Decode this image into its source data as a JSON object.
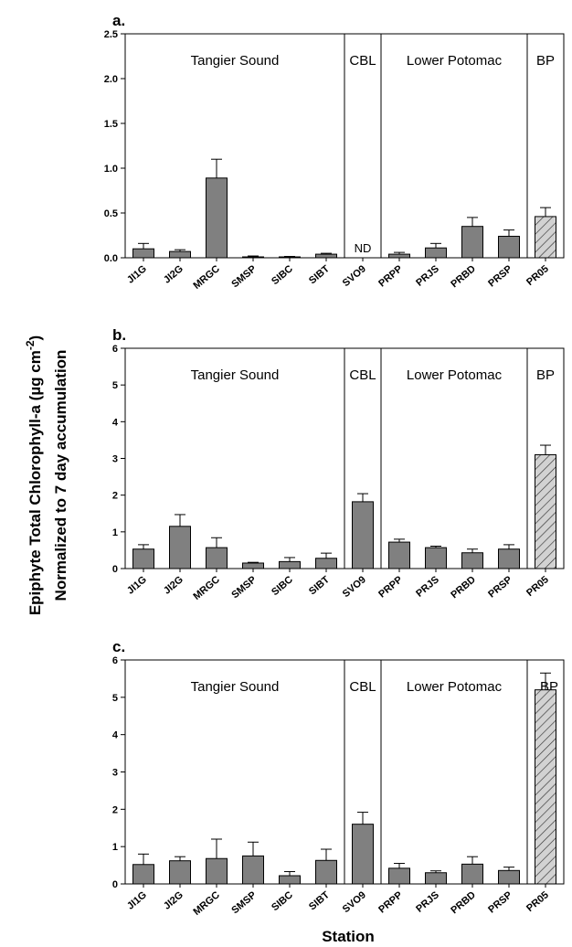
{
  "figure": {
    "y_axis_title_line1": "Epiphyte Total Chlorophyll-a (µg cm",
    "y_axis_title_sup": "-2",
    "y_axis_title_close": ")",
    "y_axis_title_line2": "Normalized to 7 day accumulation",
    "x_axis_title": "Station"
  },
  "chart_data": [
    {
      "type": "bar",
      "panel": "a.",
      "categories": [
        "JI1G",
        "JI2G",
        "MRGC",
        "SMSP",
        "SIBC",
        "SIBT",
        "SVO9",
        "PRPP",
        "PRJS",
        "PRBD",
        "PRSP",
        "PR05"
      ],
      "values": [
        0.1,
        0.07,
        0.89,
        0.01,
        0.01,
        0.04,
        null,
        0.04,
        0.11,
        0.35,
        0.24,
        0.46
      ],
      "errors": [
        0.06,
        0.02,
        0.21,
        0.01,
        0.005,
        0.01,
        null,
        0.02,
        0.05,
        0.1,
        0.07,
        0.1
      ],
      "hatched": [
        false,
        false,
        false,
        false,
        false,
        false,
        false,
        false,
        false,
        false,
        false,
        true
      ],
      "annotations": [
        {
          "category": "SVO9",
          "text": "ND"
        }
      ],
      "regions": [
        {
          "label": "Tangier Sound",
          "start": 0,
          "end": 6
        },
        {
          "label": "CBL",
          "start": 6,
          "end": 7
        },
        {
          "label": "Lower Potomac",
          "start": 7,
          "end": 11
        },
        {
          "label": "BP",
          "start": 11,
          "end": 12
        }
      ],
      "ylim": [
        0,
        2.5
      ],
      "yticks": [
        0.0,
        0.5,
        1.0,
        1.5,
        2.0,
        2.5
      ],
      "ytick_labels": [
        "0.0",
        "0.5",
        "1.0",
        "1.5",
        "2.0",
        "2.5"
      ]
    },
    {
      "type": "bar",
      "panel": "b.",
      "categories": [
        "JI1G",
        "JI2G",
        "MRGC",
        "SMSP",
        "SIBC",
        "SIBT",
        "SVO9",
        "PRPP",
        "PRJS",
        "PRBD",
        "PRSP",
        "PR05"
      ],
      "values": [
        0.53,
        1.15,
        0.57,
        0.15,
        0.19,
        0.28,
        1.82,
        0.72,
        0.57,
        0.43,
        0.53,
        3.1
      ],
      "errors": [
        0.12,
        0.32,
        0.27,
        0.02,
        0.11,
        0.14,
        0.22,
        0.08,
        0.04,
        0.1,
        0.12,
        0.26
      ],
      "hatched": [
        false,
        false,
        false,
        false,
        false,
        false,
        false,
        false,
        false,
        false,
        false,
        true
      ],
      "annotations": [],
      "regions": [
        {
          "label": "Tangier Sound",
          "start": 0,
          "end": 6
        },
        {
          "label": "CBL",
          "start": 6,
          "end": 7
        },
        {
          "label": "Lower Potomac",
          "start": 7,
          "end": 11
        },
        {
          "label": "BP",
          "start": 11,
          "end": 12
        }
      ],
      "ylim": [
        0,
        6
      ],
      "yticks": [
        0,
        1,
        2,
        3,
        4,
        5,
        6
      ],
      "ytick_labels": [
        "0",
        "1",
        "2",
        "3",
        "4",
        "5",
        "6"
      ]
    },
    {
      "type": "bar",
      "panel": "c.",
      "categories": [
        "JI1G",
        "JI2G",
        "MRGC",
        "SMSP",
        "SIBC",
        "SIBT",
        "SVO9",
        "PRPP",
        "PRJS",
        "PRBD",
        "PRSP",
        "PR05"
      ],
      "values": [
        0.52,
        0.62,
        0.68,
        0.75,
        0.22,
        0.63,
        1.6,
        0.42,
        0.3,
        0.53,
        0.36,
        5.2
      ],
      "errors": [
        0.28,
        0.11,
        0.52,
        0.37,
        0.11,
        0.3,
        0.32,
        0.13,
        0.05,
        0.2,
        0.09,
        0.45
      ],
      "hatched": [
        false,
        false,
        false,
        false,
        false,
        false,
        false,
        false,
        false,
        false,
        false,
        true
      ],
      "annotations": [],
      "regions": [
        {
          "label": "Tangier Sound",
          "start": 0,
          "end": 6
        },
        {
          "label": "CBL",
          "start": 6,
          "end": 7
        },
        {
          "label": "Lower Potomac",
          "start": 7,
          "end": 11
        },
        {
          "label": "BP",
          "start": 11,
          "end": 12
        }
      ],
      "ylim": [
        0,
        6
      ],
      "yticks": [
        0,
        1,
        2,
        3,
        4,
        5,
        6
      ],
      "ytick_labels": [
        "0",
        "1",
        "2",
        "3",
        "4",
        "5",
        "6"
      ]
    }
  ]
}
